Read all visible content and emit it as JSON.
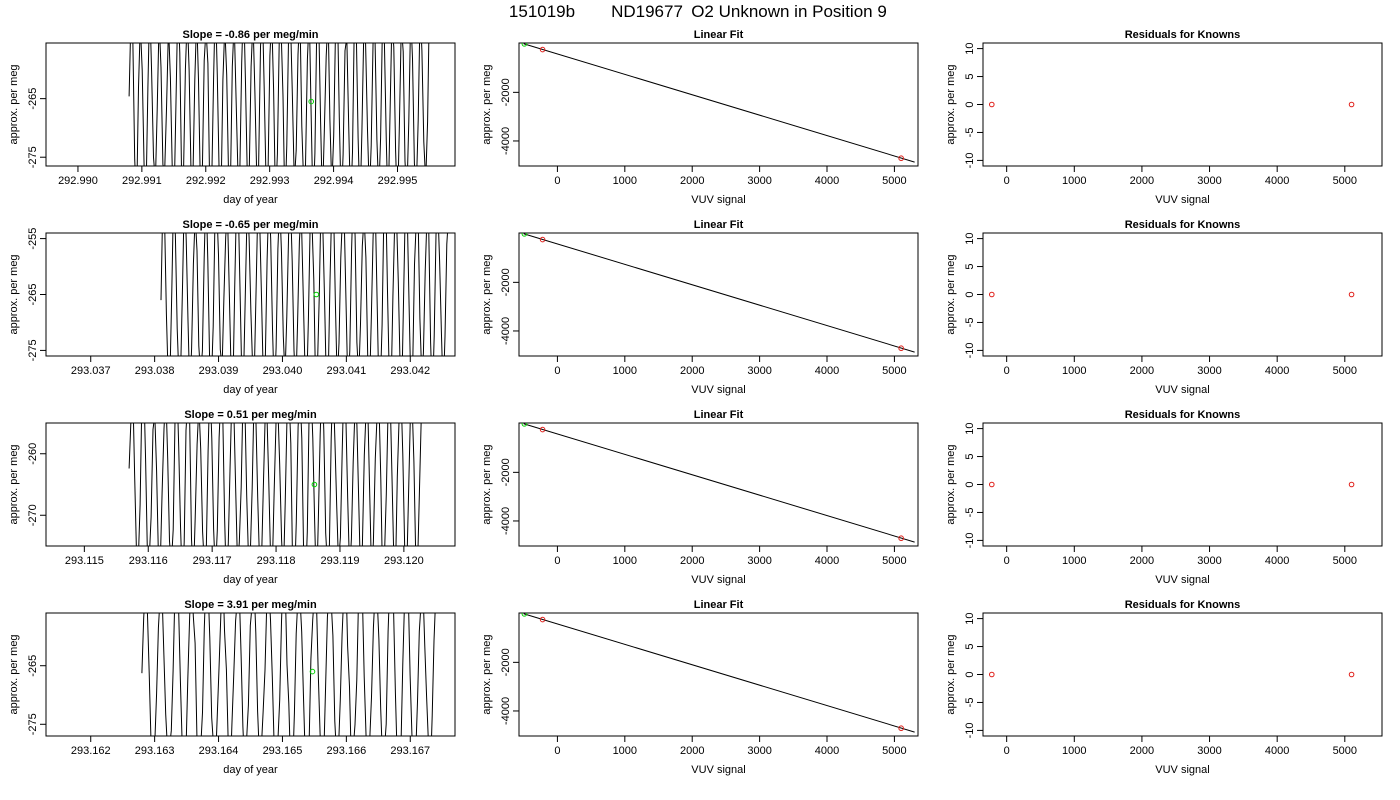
{
  "header": {
    "run_id": "151019b",
    "tank_id": "ND19677",
    "description": "O2 Unknown in Position  9"
  },
  "colors": {
    "line": "#000000",
    "known_point": "#e0201b",
    "unknown_point": "#00d000",
    "frame": "#000000"
  },
  "chart_data": [
    {
      "type": "line",
      "row": 1,
      "panel": "timeseries",
      "title": "Slope =  -0.86  per meg/min",
      "xlabel": "day of year",
      "ylabel": "approx. per meg",
      "xlim": [
        292.9895,
        292.9959
      ],
      "ylim": [
        -276.5,
        -255.5
      ],
      "xticks": [
        292.99,
        292.991,
        292.992,
        292.993,
        292.994,
        292.995
      ],
      "xtick_labels": [
        "292.990",
        "292.991",
        "292.992",
        "292.993",
        "292.994",
        "292.995"
      ],
      "yticks": [
        -275,
        -265
      ],
      "ytick_labels": [
        "-275",
        "-265"
      ],
      "trace_start": 292.9908,
      "trace_end": 292.9955,
      "trace_min": -276.5,
      "trace_max": -255.5,
      "trace_points": 160,
      "oscillation_period": 0.000146,
      "marker": {
        "x": 292.99365,
        "y": -265.5
      },
      "grid": false,
      "legend": "none"
    },
    {
      "type": "scatter",
      "row": 1,
      "panel": "fit",
      "title": "Linear Fit",
      "xlabel": "VUV signal",
      "ylabel": "approx. per meg",
      "xlim": [
        -570,
        5350
      ],
      "ylim": [
        -5030,
        30
      ],
      "xticks": [
        0,
        1000,
        2000,
        3000,
        4000,
        5000
      ],
      "yticks": [
        -4000,
        -2000
      ],
      "xtick_labels": [
        "0",
        "1000",
        "2000",
        "3000",
        "4000",
        "5000"
      ],
      "ytick_labels": [
        "-4000",
        "-2000"
      ],
      "fit_line": {
        "x": [
          -500,
          5300
        ],
        "y": [
          0,
          -4870
        ]
      },
      "knowns": {
        "x": [
          -220,
          5100
        ],
        "y": [
          -240,
          -4710
        ]
      },
      "unknowns": {
        "x": [
          -490
        ],
        "y": [
          -5
        ]
      },
      "grid": false,
      "legend": "none"
    },
    {
      "type": "scatter",
      "row": 1,
      "panel": "residuals",
      "title": "Residuals for Knowns",
      "xlabel": "VUV signal",
      "ylabel": "approx. per meg",
      "xlim": [
        -350,
        5550
      ],
      "ylim": [
        -11,
        11
      ],
      "xticks": [
        0,
        1000,
        2000,
        3000,
        4000,
        5000
      ],
      "yticks": [
        -10,
        -5,
        0,
        5,
        10
      ],
      "xtick_labels": [
        "0",
        "1000",
        "2000",
        "3000",
        "4000",
        "5000"
      ],
      "ytick_labels": [
        "-10",
        "-5",
        "0",
        "5",
        "10"
      ],
      "knowns": {
        "x": [
          -220,
          5100
        ],
        "y": [
          0,
          0
        ]
      },
      "grid": false,
      "legend": "none"
    },
    {
      "type": "line",
      "row": 2,
      "panel": "timeseries",
      "title": "Slope =  -0.65  per meg/min",
      "xlabel": "day of year",
      "ylabel": "approx. per meg",
      "xlim": [
        293.0363,
        293.0427
      ],
      "ylim": [
        -276,
        -254
      ],
      "xticks": [
        293.037,
        293.038,
        293.039,
        293.04,
        293.041,
        293.042
      ],
      "xtick_labels": [
        "293.037",
        "293.038",
        "293.039",
        "293.040",
        "293.041",
        "293.042"
      ],
      "yticks": [
        -275,
        -265,
        -255
      ],
      "ytick_labels": [
        "-275",
        "-265",
        "-255"
      ],
      "trace_start": 293.0381,
      "trace_end": 293.0426,
      "trace_min": -276,
      "trace_max": -254,
      "trace_points": 160,
      "oscillation_period": 0.000165,
      "marker": {
        "x": 293.04053,
        "y": -265
      },
      "grid": false,
      "legend": "none"
    },
    {
      "type": "scatter",
      "row": 2,
      "panel": "fit",
      "title": "Linear Fit",
      "xlabel": "VUV signal",
      "ylabel": "approx. per meg",
      "xlim": [
        -570,
        5350
      ],
      "ylim": [
        -5030,
        30
      ],
      "xticks": [
        0,
        1000,
        2000,
        3000,
        4000,
        5000
      ],
      "yticks": [
        -4000,
        -2000
      ],
      "xtick_labels": [
        "0",
        "1000",
        "2000",
        "3000",
        "4000",
        "5000"
      ],
      "ytick_labels": [
        "-4000",
        "-2000"
      ],
      "fit_line": {
        "x": [
          -500,
          5300
        ],
        "y": [
          0,
          -4870
        ]
      },
      "knowns": {
        "x": [
          -220,
          5100
        ],
        "y": [
          -240,
          -4710
        ]
      },
      "unknowns": {
        "x": [
          -490
        ],
        "y": [
          -5
        ]
      },
      "grid": false,
      "legend": "none"
    },
    {
      "type": "scatter",
      "row": 2,
      "panel": "residuals",
      "title": "Residuals for Knowns",
      "xlabel": "VUV signal",
      "ylabel": "approx. per meg",
      "xlim": [
        -350,
        5550
      ],
      "ylim": [
        -11,
        11
      ],
      "xticks": [
        0,
        1000,
        2000,
        3000,
        4000,
        5000
      ],
      "yticks": [
        -10,
        -5,
        0,
        5,
        10
      ],
      "xtick_labels": [
        "0",
        "1000",
        "2000",
        "3000",
        "4000",
        "5000"
      ],
      "ytick_labels": [
        "-10",
        "-5",
        "0",
        "5",
        "10"
      ],
      "knowns": {
        "x": [
          -220,
          5100
        ],
        "y": [
          0,
          0
        ]
      },
      "grid": false,
      "legend": "none"
    },
    {
      "type": "line",
      "row": 3,
      "panel": "timeseries",
      "title": "Slope =  0.51  per meg/min",
      "xlabel": "day of year",
      "ylabel": "approx. per meg",
      "xlim": [
        293.1144,
        293.1208
      ],
      "ylim": [
        -275,
        -255
      ],
      "xticks": [
        293.115,
        293.116,
        293.117,
        293.118,
        293.119,
        293.12
      ],
      "xtick_labels": [
        "293.115",
        "293.116",
        "293.117",
        "293.118",
        "293.119",
        "293.120"
      ],
      "yticks": [
        -270,
        -260
      ],
      "ytick_labels": [
        "-270",
        "-260"
      ],
      "trace_start": 293.1157,
      "trace_end": 293.1203,
      "trace_min": -275,
      "trace_max": -255,
      "trace_points": 160,
      "oscillation_period": 0.000175,
      "marker": {
        "x": 293.1186,
        "y": -265
      },
      "grid": false,
      "legend": "none"
    },
    {
      "type": "scatter",
      "row": 3,
      "panel": "fit",
      "title": "Linear Fit",
      "xlabel": "VUV signal",
      "ylabel": "approx. per meg",
      "xlim": [
        -570,
        5350
      ],
      "ylim": [
        -5030,
        30
      ],
      "xticks": [
        0,
        1000,
        2000,
        3000,
        4000,
        5000
      ],
      "yticks": [
        -4000,
        -2000
      ],
      "xtick_labels": [
        "0",
        "1000",
        "2000",
        "3000",
        "4000",
        "5000"
      ],
      "ytick_labels": [
        "-4000",
        "-2000"
      ],
      "fit_line": {
        "x": [
          -500,
          5300
        ],
        "y": [
          0,
          -4870
        ]
      },
      "knowns": {
        "x": [
          -220,
          5100
        ],
        "y": [
          -240,
          -4710
        ]
      },
      "unknowns": {
        "x": [
          -490
        ],
        "y": [
          -5
        ]
      },
      "grid": false,
      "legend": "none"
    },
    {
      "type": "scatter",
      "row": 3,
      "panel": "residuals",
      "title": "Residuals for Knowns",
      "xlabel": "VUV signal",
      "ylabel": "approx. per meg",
      "xlim": [
        -350,
        5550
      ],
      "ylim": [
        -11,
        11
      ],
      "xticks": [
        0,
        1000,
        2000,
        3000,
        4000,
        5000
      ],
      "yticks": [
        -10,
        -5,
        0,
        5,
        10
      ],
      "xtick_labels": [
        "0",
        "1000",
        "2000",
        "3000",
        "4000",
        "5000"
      ],
      "ytick_labels": [
        "-10",
        "-5",
        "0",
        "5",
        "10"
      ],
      "knowns": {
        "x": [
          -220,
          5100
        ],
        "y": [
          0,
          0
        ]
      },
      "grid": false,
      "legend": "none"
    },
    {
      "type": "line",
      "row": 4,
      "panel": "timeseries",
      "title": "Slope =  3.91  per meg/min",
      "xlabel": "day of year",
      "ylabel": "approx. per meg",
      "xlim": [
        293.1613,
        293.1677
      ],
      "ylim": [
        -277,
        -256
      ],
      "xticks": [
        293.162,
        293.163,
        293.164,
        293.165,
        293.166,
        293.167
      ],
      "xtick_labels": [
        "293.162",
        "293.163",
        "293.164",
        "293.165",
        "293.166",
        "293.167"
      ],
      "yticks": [
        -275,
        -265
      ],
      "ytick_labels": [
        "-275",
        "-265"
      ],
      "trace_start": 293.1628,
      "trace_end": 293.1674,
      "trace_min": -277,
      "trace_max": -256,
      "trace_points": 160,
      "oscillation_period": 0.00024,
      "marker": {
        "x": 293.16547,
        "y": -266
      },
      "grid": false,
      "legend": "none"
    },
    {
      "type": "scatter",
      "row": 4,
      "panel": "fit",
      "title": "Linear Fit",
      "xlabel": "VUV signal",
      "ylabel": "approx. per meg",
      "xlim": [
        -570,
        5350
      ],
      "ylim": [
        -5030,
        30
      ],
      "xticks": [
        0,
        1000,
        2000,
        3000,
        4000,
        5000
      ],
      "yticks": [
        -4000,
        -2000
      ],
      "xtick_labels": [
        "0",
        "1000",
        "2000",
        "3000",
        "4000",
        "5000"
      ],
      "ytick_labels": [
        "-4000",
        "-2000"
      ],
      "fit_line": {
        "x": [
          -500,
          5300
        ],
        "y": [
          0,
          -4870
        ]
      },
      "knowns": {
        "x": [
          -220,
          5100
        ],
        "y": [
          -240,
          -4710
        ]
      },
      "unknowns": {
        "x": [
          -490
        ],
        "y": [
          -5
        ]
      },
      "grid": false,
      "legend": "none"
    },
    {
      "type": "scatter",
      "row": 4,
      "panel": "residuals",
      "title": "Residuals for Knowns",
      "xlabel": "VUV signal",
      "ylabel": "approx. per meg",
      "xlim": [
        -350,
        5550
      ],
      "ylim": [
        -11,
        11
      ],
      "xticks": [
        0,
        1000,
        2000,
        3000,
        4000,
        5000
      ],
      "yticks": [
        -10,
        -5,
        0,
        5,
        10
      ],
      "xtick_labels": [
        "0",
        "1000",
        "2000",
        "3000",
        "4000",
        "5000"
      ],
      "ytick_labels": [
        "-10",
        "-5",
        "0",
        "5",
        "10"
      ],
      "knowns": {
        "x": [
          -220,
          5100
        ],
        "y": [
          0,
          0
        ]
      },
      "grid": false,
      "legend": "none"
    }
  ]
}
